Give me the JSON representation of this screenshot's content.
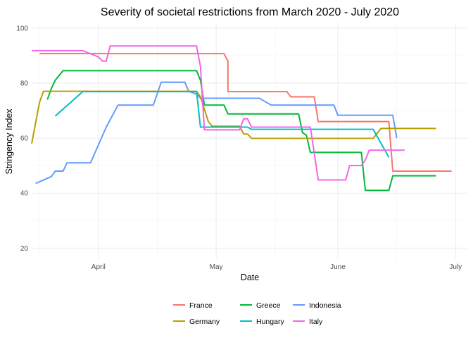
{
  "chart_data": {
    "type": "line",
    "title": "Severity of societal restrictions from March 2020 - July 2020",
    "xlabel": "Date",
    "ylabel": "Stringency Index",
    "xlim": [
      "2020-03-15",
      "2020-07-04"
    ],
    "ylim": [
      16,
      102
    ],
    "x_ticks": [
      {
        "date": "2020-04-01",
        "label": "April"
      },
      {
        "date": "2020-05-01",
        "label": "May"
      },
      {
        "date": "2020-06-01",
        "label": "June"
      },
      {
        "date": "2020-07-01",
        "label": "July"
      }
    ],
    "x_minor_ticks": [
      "2020-03-17",
      "2020-04-16",
      "2020-05-16",
      "2020-06-16"
    ],
    "y_ticks": [
      20,
      40,
      60,
      80,
      100
    ],
    "y_minor_ticks": [
      30,
      50,
      70,
      90
    ],
    "grid": true,
    "legend_position": "bottom",
    "series": [
      {
        "name": "France",
        "color": "#F8766D",
        "points": [
          [
            "2020-03-17",
            90.7
          ],
          [
            "2020-05-03",
            90.7
          ],
          [
            "2020-05-03",
            90.7
          ],
          [
            "2020-05-04",
            88
          ],
          [
            "2020-05-04",
            76.9
          ],
          [
            "2020-05-19",
            76.9
          ],
          [
            "2020-05-20",
            75
          ],
          [
            "2020-05-26",
            75
          ],
          [
            "2020-05-27",
            66
          ],
          [
            "2020-06-14",
            66
          ],
          [
            "2020-06-15",
            48
          ],
          [
            "2020-06-30",
            48
          ]
        ]
      },
      {
        "name": "Greece",
        "color": "#00BA38",
        "points": [
          [
            "2020-03-19",
            74
          ],
          [
            "2020-03-20",
            78
          ],
          [
            "2020-03-21",
            81
          ],
          [
            "2020-03-23",
            84.5
          ],
          [
            "2020-04-26",
            84.5
          ],
          [
            "2020-04-27",
            81
          ],
          [
            "2020-04-28",
            72
          ],
          [
            "2020-05-03",
            72
          ],
          [
            "2020-05-04",
            68.8
          ],
          [
            "2020-05-22",
            68.8
          ],
          [
            "2020-05-23",
            62
          ],
          [
            "2020-05-24",
            61
          ],
          [
            "2020-05-25",
            54.8
          ],
          [
            "2020-06-07",
            54.8
          ],
          [
            "2020-06-08",
            41
          ],
          [
            "2020-06-14",
            41
          ],
          [
            "2020-06-15",
            46.3
          ],
          [
            "2020-06-26",
            46.3
          ]
        ]
      },
      {
        "name": "Indonesia",
        "color": "#619CFF",
        "points": [
          [
            "2020-03-16",
            43.5
          ],
          [
            "2020-03-20",
            46
          ],
          [
            "2020-03-21",
            48
          ],
          [
            "2020-03-23",
            48
          ],
          [
            "2020-03-24",
            51
          ],
          [
            "2020-03-30",
            51
          ],
          [
            "2020-04-03",
            64
          ],
          [
            "2020-04-06",
            72
          ],
          [
            "2020-04-15",
            72
          ],
          [
            "2020-04-17",
            80.3
          ],
          [
            "2020-04-23",
            80.3
          ],
          [
            "2020-04-24",
            77
          ],
          [
            "2020-04-26",
            76
          ],
          [
            "2020-04-27",
            74.5
          ],
          [
            "2020-05-12",
            74.5
          ],
          [
            "2020-05-15",
            72
          ],
          [
            "2020-05-31",
            72
          ],
          [
            "2020-06-01",
            68.3
          ],
          [
            "2020-06-15",
            68.3
          ],
          [
            "2020-06-16",
            60
          ]
        ]
      },
      {
        "name": "Germany",
        "color": "#B79F00",
        "points": [
          [
            "2020-03-15",
            58
          ],
          [
            "2020-03-17",
            73
          ],
          [
            "2020-03-18",
            77
          ],
          [
            "2020-03-29",
            77
          ],
          [
            "2020-04-26",
            77
          ],
          [
            "2020-04-27",
            75
          ],
          [
            "2020-04-29",
            66
          ],
          [
            "2020-04-30",
            64.3
          ],
          [
            "2020-05-07",
            64.3
          ],
          [
            "2020-05-08",
            61.5
          ],
          [
            "2020-05-09",
            61.5
          ],
          [
            "2020-05-10",
            59.9
          ],
          [
            "2020-06-10",
            59.9
          ],
          [
            "2020-06-12",
            63.5
          ],
          [
            "2020-06-26",
            63.5
          ]
        ]
      },
      {
        "name": "Hungary",
        "color": "#00BFC4",
        "points": [
          [
            "2020-03-21",
            68
          ],
          [
            "2020-03-28",
            76.9
          ],
          [
            "2020-04-26",
            76.9
          ],
          [
            "2020-04-27",
            64
          ],
          [
            "2020-05-09",
            64
          ],
          [
            "2020-05-10",
            63.2
          ],
          [
            "2020-06-10",
            63.2
          ],
          [
            "2020-06-14",
            53
          ]
        ]
      },
      {
        "name": "Italy",
        "color": "#F564E3",
        "points": [
          [
            "2020-03-15",
            91.8
          ],
          [
            "2020-03-28",
            91.8
          ],
          [
            "2020-04-01",
            89.5
          ],
          [
            "2020-04-02",
            88
          ],
          [
            "2020-04-03",
            88
          ],
          [
            "2020-04-04",
            93.5
          ],
          [
            "2020-04-26",
            93.5
          ],
          [
            "2020-04-27",
            86
          ],
          [
            "2020-04-28",
            63
          ],
          [
            "2020-05-07",
            63
          ],
          [
            "2020-05-08",
            67
          ],
          [
            "2020-05-09",
            67
          ],
          [
            "2020-05-10",
            64
          ],
          [
            "2020-05-25",
            64
          ],
          [
            "2020-05-27",
            44.8
          ],
          [
            "2020-06-03",
            44.8
          ],
          [
            "2020-06-04",
            50
          ],
          [
            "2020-06-07",
            50
          ],
          [
            "2020-06-08",
            52
          ],
          [
            "2020-06-09",
            55.6
          ],
          [
            "2020-06-18",
            55.6
          ]
        ]
      }
    ],
    "legend": {
      "rows": [
        [
          "France",
          "Greece",
          "Indonesia"
        ],
        [
          "Germany",
          "Hungary",
          "Italy"
        ]
      ]
    }
  }
}
